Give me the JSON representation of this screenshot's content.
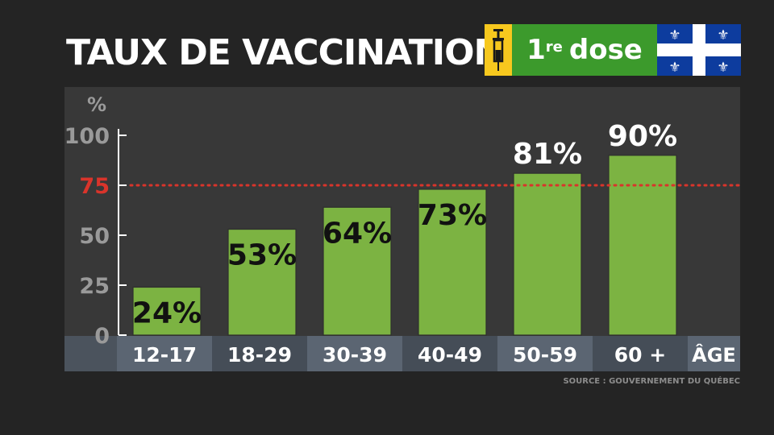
{
  "title": "TAUX DE VACCINATION",
  "badge": {
    "dose_number": "1",
    "dose_suffix": "re",
    "dose_word": "dose",
    "syringe_icon": "syringe-icon",
    "flag_icon": "quebec-flag-icon",
    "colors": {
      "syringe_bg": "#f7c81e",
      "dose_bg": "#3c9a2c",
      "flag_blue": "#0d3c9e"
    }
  },
  "source": "SOURCE : GOUVERNEMENT DU QUÉBEC",
  "chart_data": {
    "type": "bar",
    "title": "TAUX DE VACCINATION",
    "ylabel": "%",
    "xlabel": "ÂGE",
    "categories": [
      "12-17",
      "18-29",
      "30-39",
      "40-49",
      "50-59",
      "60 +"
    ],
    "values": [
      24,
      53,
      64,
      73,
      81,
      90
    ],
    "data_labels": [
      "24%",
      "53%",
      "64%",
      "73%",
      "81%",
      "90%"
    ],
    "ylim": [
      0,
      100
    ],
    "yticks": [
      "0",
      "25",
      "50",
      "75",
      "100"
    ],
    "reference_line": {
      "value": 75,
      "label": "75",
      "style": "dotted",
      "color": "#d9342b"
    },
    "bar_color": "#7cb342",
    "grid": false,
    "legend": "none"
  }
}
